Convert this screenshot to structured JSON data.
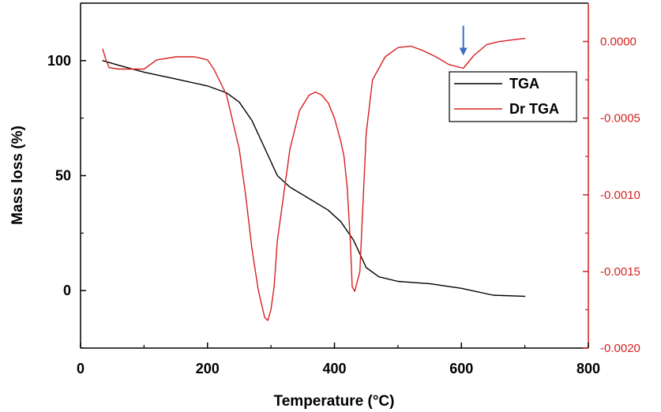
{
  "chart_data": {
    "type": "line",
    "x_axis": {
      "label": "Temperature (°C)",
      "range": [
        0,
        800
      ],
      "ticks": [
        {
          "value": 0,
          "label": "0"
        },
        {
          "value": 200,
          "label": "200"
        },
        {
          "value": 400,
          "label": "400"
        },
        {
          "value": 600,
          "label": "600"
        },
        {
          "value": 800,
          "label": "800"
        }
      ]
    },
    "y_axis_left": {
      "label": "Mass loss (%)",
      "range": [
        -25,
        125
      ],
      "ticks": [
        {
          "value": 0,
          "label": "0"
        },
        {
          "value": 50,
          "label": "50"
        },
        {
          "value": 100,
          "label": "100"
        }
      ]
    },
    "y_axis_right": {
      "range": [
        -0.002,
        0.00025
      ],
      "color": "#d62020",
      "ticks": [
        {
          "value": 0.0,
          "label": "0.0000"
        },
        {
          "value": -0.0005,
          "label": "-0.0005"
        },
        {
          "value": -0.001,
          "label": "-0.0010"
        },
        {
          "value": -0.0015,
          "label": "-0.0015"
        },
        {
          "value": -0.002,
          "label": "-0.0020"
        }
      ]
    },
    "legend": {
      "position": "top-right"
    },
    "grid": false,
    "annotations": [
      {
        "type": "arrow",
        "x": 603,
        "y_axis": "right",
        "y": -0.000175,
        "color": "#3a6fc4"
      }
    ],
    "series": [
      {
        "name": "TGA",
        "axis": "left",
        "color": "#000000",
        "x": [
          35,
          60,
          100,
          150,
          200,
          230,
          250,
          270,
          290,
          310,
          330,
          360,
          390,
          410,
          430,
          450,
          470,
          500,
          550,
          600,
          650,
          700
        ],
        "y": [
          100,
          98,
          95,
          92,
          89,
          86,
          82,
          74,
          62,
          50,
          45,
          40,
          35,
          30,
          22,
          10,
          6,
          4,
          3,
          1,
          -2,
          -2.5
        ]
      },
      {
        "name": "Dr TGA",
        "axis": "right",
        "color": "#d62020",
        "x": [
          35,
          40,
          45,
          60,
          80,
          100,
          120,
          150,
          180,
          200,
          210,
          230,
          250,
          260,
          270,
          280,
          290,
          295,
          300,
          305,
          310,
          320,
          330,
          345,
          360,
          370,
          380,
          390,
          400,
          410,
          415,
          420,
          425,
          428,
          432,
          440,
          450,
          460,
          480,
          500,
          520,
          540,
          560,
          580,
          603,
          620,
          640,
          660,
          680,
          700
        ],
        "y": [
          -5e-05,
          -0.00012,
          -0.00017,
          -0.00018,
          -0.00018,
          -0.00018,
          -0.00012,
          -0.0001,
          -0.0001,
          -0.00012,
          -0.00018,
          -0.00035,
          -0.0007,
          -0.001,
          -0.00135,
          -0.00162,
          -0.0018,
          -0.00182,
          -0.00175,
          -0.0016,
          -0.0013,
          -0.001,
          -0.0007,
          -0.00045,
          -0.00035,
          -0.00033,
          -0.00035,
          -0.0004,
          -0.0005,
          -0.00065,
          -0.00075,
          -0.00095,
          -0.0013,
          -0.0016,
          -0.00163,
          -0.0015,
          -0.0006,
          -0.00025,
          -0.0001,
          -4e-05,
          -3e-05,
          -6e-05,
          -0.0001,
          -0.00015,
          -0.000175,
          -9e-05,
          -2e-05,
          0.0,
          1e-05,
          2e-05
        ]
      }
    ]
  }
}
